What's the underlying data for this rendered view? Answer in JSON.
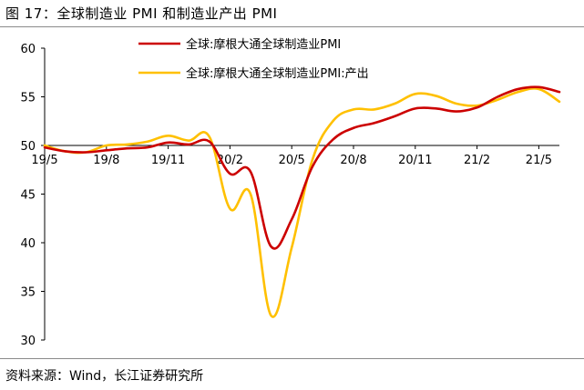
{
  "figure": {
    "title": "图 17：全球制造业 PMI 和制造业产出 PMI",
    "source": "资料来源：Wind，长江证券研究所"
  },
  "colors": {
    "series_pmi": "#cc0000",
    "series_output": "#ffc000",
    "axis": "#000000",
    "rule": "#8a8a8a"
  },
  "chart_data": {
    "type": "line",
    "title": "全球制造业 PMI 和制造业产出 PMI",
    "xlabel": "",
    "ylabel": "",
    "ylim": [
      30,
      60
    ],
    "yticks": [
      30,
      35,
      40,
      45,
      50,
      55,
      60
    ],
    "x_axis_crosses_at": 50,
    "grid": false,
    "legend_position": "top-center",
    "categories": [
      "19/5",
      "19/6",
      "19/7",
      "19/8",
      "19/9",
      "19/10",
      "19/11",
      "19/12",
      "20/1",
      "20/2",
      "20/3",
      "20/4",
      "20/5",
      "20/6",
      "20/7",
      "20/8",
      "20/9",
      "20/10",
      "20/11",
      "20/12",
      "21/1",
      "21/2",
      "21/3",
      "21/4",
      "21/5",
      "21/6"
    ],
    "x_tick_labels": [
      "19/5",
      "19/8",
      "19/11",
      "20/2",
      "20/5",
      "20/8",
      "20/11",
      "21/2",
      "21/5"
    ],
    "series": [
      {
        "name": "全球:摩根大通全球制造业PMI",
        "color": "#cc0000",
        "values": [
          49.8,
          49.4,
          49.3,
          49.5,
          49.7,
          49.8,
          50.3,
          50.1,
          50.4,
          47.1,
          47.3,
          39.6,
          42.4,
          47.8,
          50.6,
          51.8,
          52.3,
          53.0,
          53.8,
          53.8,
          53.5,
          53.9,
          55.0,
          55.8,
          56.0,
          55.5
        ]
      },
      {
        "name": "全球:摩根大通全球制造业PMI:产出",
        "color": "#ffc000",
        "values": [
          50.0,
          49.4,
          49.3,
          50.0,
          50.1,
          50.4,
          51.0,
          50.5,
          50.9,
          43.5,
          45.0,
          32.5,
          39.5,
          48.5,
          52.5,
          53.7,
          53.7,
          54.3,
          55.3,
          55.1,
          54.3,
          54.1,
          54.7,
          55.5,
          55.8,
          54.5
        ]
      }
    ]
  }
}
